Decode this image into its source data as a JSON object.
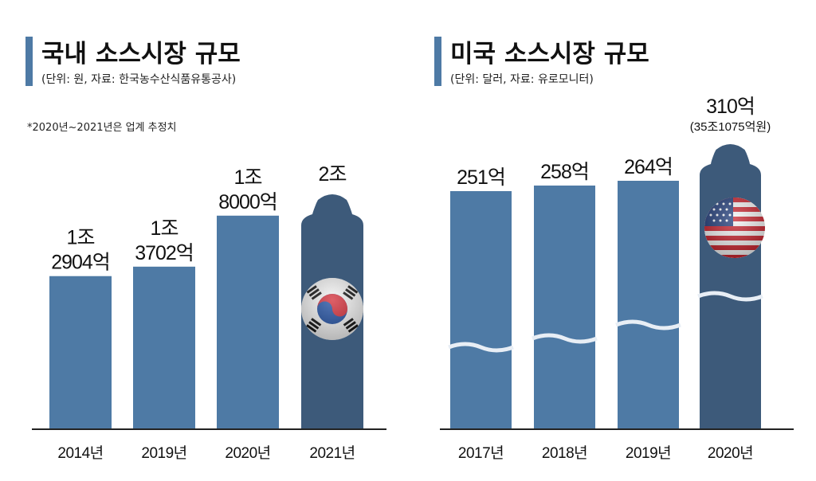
{
  "colors": {
    "bar": "#4e7aa5",
    "bar_highlight": "#3d5a7a",
    "title_accent": "#4e7aa5",
    "axis": "#222222",
    "wave": "#e8eef5"
  },
  "chart_data": [
    {
      "type": "bar",
      "title": "국내 소스시장 규모",
      "subtitle": "(단위: 원, 자료: 한국농수산식품유통공사)",
      "note": "*2020년~2021년은 업계 추정치",
      "categories": [
        "2014년",
        "2019년",
        "2020년",
        "2021년"
      ],
      "values": [
        1290400000000,
        1370200000000,
        1800000000000,
        2000000000000
      ],
      "value_labels": [
        [
          "1조",
          "2904억"
        ],
        [
          "1조",
          "3702억"
        ],
        [
          "1조",
          "8000억"
        ],
        [
          "2조"
        ]
      ],
      "highlight_index": 3,
      "highlight_icon": "korea-flag-icon",
      "ylim": [
        0,
        2000000000000
      ],
      "grid": false
    },
    {
      "type": "bar",
      "title": "미국 소스시장 규모",
      "subtitle": "(단위: 달러, 자료: 유로모니터)",
      "categories": [
        "2017년",
        "2018년",
        "2019년",
        "2020년"
      ],
      "values": [
        25100000000,
        25800000000,
        26400000000,
        31000000000
      ],
      "value_labels": [
        [
          "251억"
        ],
        [
          "258억"
        ],
        [
          "264억"
        ],
        [
          "310억"
        ]
      ],
      "value_sublabels": [
        "",
        "",
        "",
        "(35조1075억원)"
      ],
      "highlight_index": 3,
      "highlight_icon": "us-flag-icon",
      "axis_break": true,
      "grid": false
    }
  ]
}
